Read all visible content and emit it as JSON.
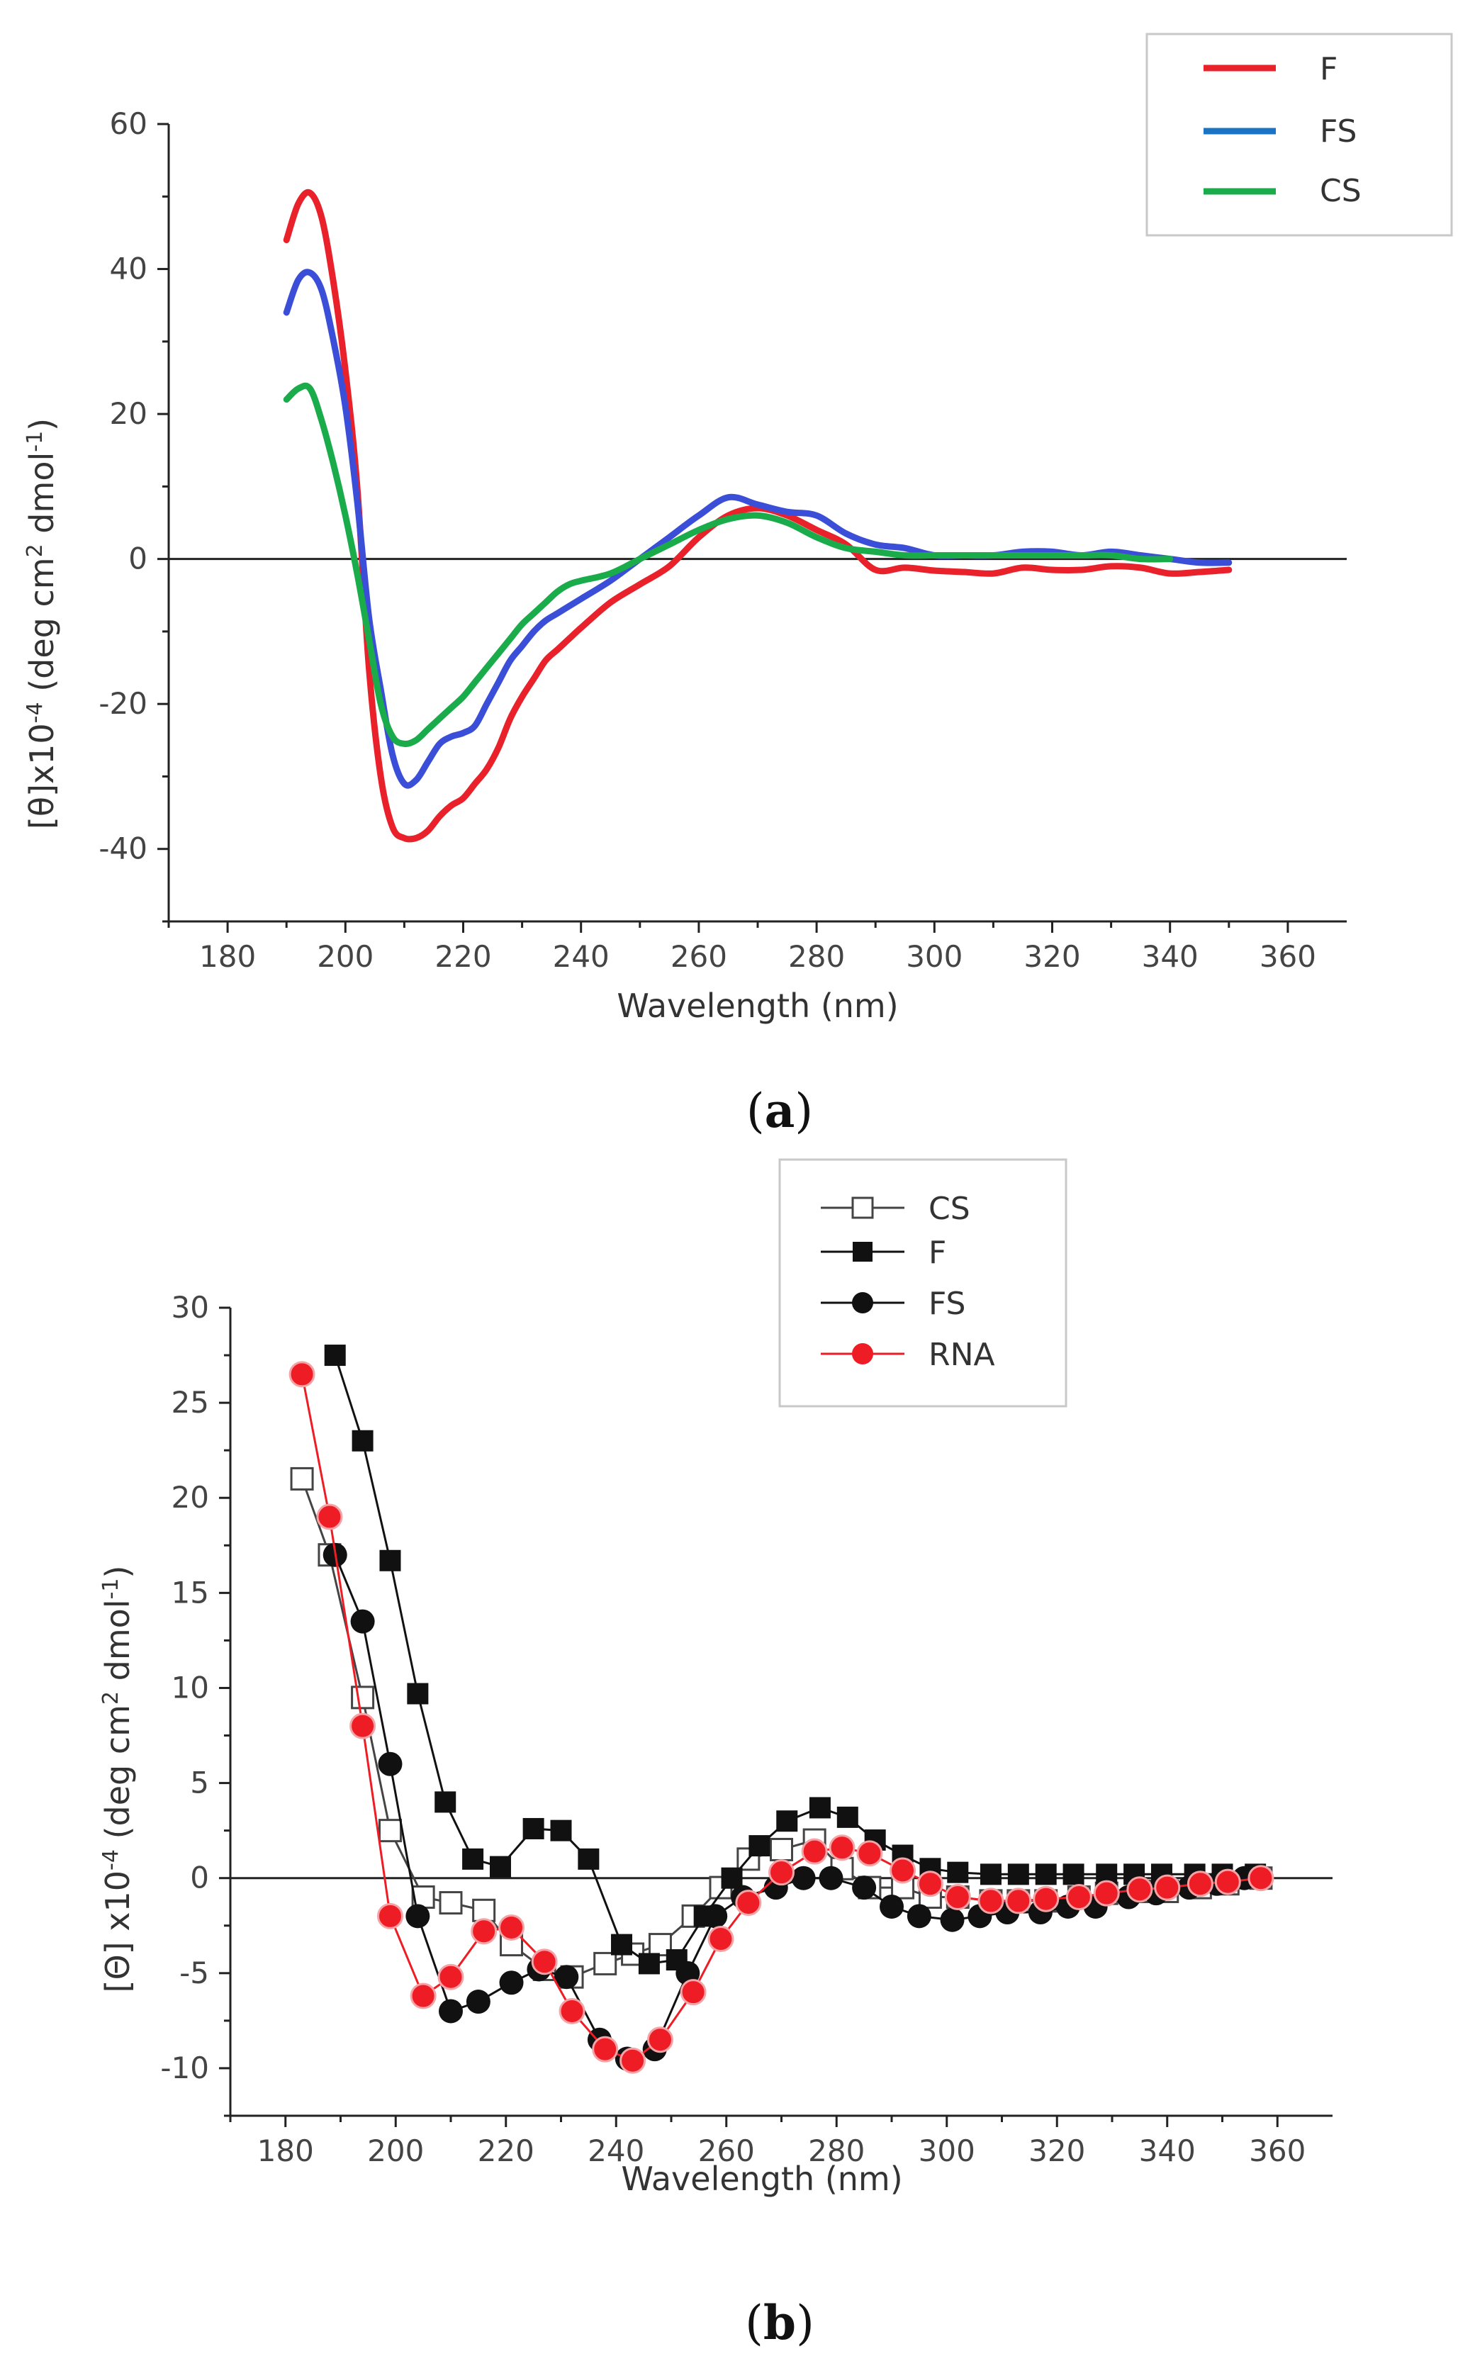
{
  "figure": {
    "caption_a_open": "(",
    "caption_a_letter": "a",
    "caption_a_close": ")",
    "caption_b_open": "(",
    "caption_b_letter": "b",
    "caption_b_close": ")"
  },
  "chart_data": [
    {
      "id": "a",
      "type": "line",
      "title": "",
      "xlabel": "Wavelength (nm)",
      "ylabel_parts": [
        "[θ]x10",
        "-4",
        " (deg cm",
        "2",
        " dmol",
        "-1",
        ")"
      ],
      "xlim": [
        170,
        370
      ],
      "ylim": [
        -50,
        60
      ],
      "xticks": [
        180,
        200,
        220,
        240,
        260,
        280,
        300,
        320,
        340,
        360
      ],
      "yticks": [
        -40,
        -20,
        0,
        20,
        40,
        60
      ],
      "zero_line": true,
      "legend_position": "top-right",
      "series": [
        {
          "name": "F",
          "color": "#e8212a",
          "marker": "none",
          "x": [
            190,
            192,
            194,
            196,
            198,
            200,
            202,
            204,
            206,
            208,
            210,
            212,
            214,
            216,
            218,
            220,
            222,
            224,
            226,
            228,
            230,
            232,
            234,
            236,
            238,
            240,
            245,
            250,
            255,
            260,
            265,
            270,
            275,
            280,
            285,
            290,
            295,
            300,
            305,
            310,
            315,
            320,
            325,
            330,
            335,
            340,
            345,
            350
          ],
          "y": [
            44,
            49,
            50.5,
            47,
            38,
            26,
            10,
            -15,
            -30,
            -37,
            -38.5,
            -38.5,
            -37.5,
            -35.5,
            -34,
            -33,
            -31,
            -29,
            -26,
            -22,
            -19,
            -16.5,
            -14,
            -12.5,
            -11,
            -9.5,
            -6,
            -3.5,
            -1,
            3,
            6,
            7,
            6,
            4,
            2,
            -1.5,
            -1.2,
            -1.6,
            -1.8,
            -2,
            -1.2,
            -1.5,
            -1.5,
            -1,
            -1.2,
            -2,
            -1.8,
            -1.5
          ]
        },
        {
          "name": "FS",
          "color": "#3a4ed8",
          "marker": "none",
          "x": [
            190,
            192,
            194,
            196,
            198,
            200,
            202,
            204,
            206,
            208,
            210,
            212,
            214,
            216,
            218,
            220,
            222,
            224,
            226,
            228,
            230,
            232,
            234,
            236,
            238,
            240,
            245,
            250,
            255,
            260,
            265,
            270,
            275,
            280,
            285,
            290,
            295,
            300,
            305,
            310,
            315,
            320,
            325,
            330,
            335,
            340,
            345,
            350
          ],
          "y": [
            34,
            38.5,
            39.5,
            37,
            30,
            21,
            8,
            -8,
            -18,
            -27,
            -31,
            -30.5,
            -28,
            -25.5,
            -24.5,
            -24,
            -23,
            -20,
            -17,
            -14,
            -12,
            -10,
            -8.5,
            -7.5,
            -6.5,
            -5.5,
            -3,
            0,
            3,
            6,
            8.5,
            7.5,
            6.5,
            6,
            3.5,
            2,
            1.5,
            0.5,
            0.5,
            0.5,
            1,
            1,
            0.5,
            1,
            0.5,
            0,
            -0.5,
            -0.5
          ]
        },
        {
          "name": "CS",
          "color": "#1aab4b",
          "marker": "none",
          "x": [
            190,
            192,
            194,
            196,
            198,
            200,
            202,
            204,
            206,
            208,
            210,
            212,
            214,
            216,
            218,
            220,
            222,
            224,
            226,
            228,
            230,
            232,
            234,
            236,
            238,
            240,
            245,
            250,
            255,
            260,
            265,
            270,
            275,
            280,
            285,
            290,
            295,
            300,
            305,
            310,
            315,
            320,
            325,
            330,
            335,
            340
          ],
          "y": [
            22,
            23.5,
            23.5,
            19,
            13,
            6,
            -2,
            -11,
            -20,
            -24.5,
            -25.5,
            -25,
            -23.5,
            -22,
            -20.5,
            -19,
            -17,
            -15,
            -13,
            -11,
            -9,
            -7.5,
            -6,
            -4.5,
            -3.5,
            -3,
            -2,
            0,
            2,
            4,
            5.5,
            6,
            5,
            3,
            1.5,
            1,
            0.5,
            0.5,
            0.5,
            0.5,
            0.5,
            0.5,
            0.5,
            0.5,
            0,
            0
          ]
        }
      ]
    },
    {
      "id": "b",
      "type": "line",
      "title": "",
      "xlabel": "Wavelength (nm)",
      "ylabel_parts": [
        "[Θ] x10",
        "-4",
        " (deg cm",
        "2",
        " dmol",
        "-1",
        ")"
      ],
      "xlim": [
        170,
        370
      ],
      "ylim": [
        -12.5,
        30
      ],
      "xticks": [
        180,
        200,
        220,
        240,
        260,
        280,
        300,
        320,
        340,
        360
      ],
      "yticks": [
        -10,
        -5,
        0,
        5,
        10,
        15,
        20,
        25,
        30
      ],
      "zero_line": true,
      "legend_position": "top-center",
      "series": [
        {
          "name": "CS",
          "color": "#444444",
          "marker": "open-square",
          "x": [
            183,
            188,
            194,
            199,
            205,
            210,
            216,
            221,
            227,
            232,
            238,
            243,
            248,
            254,
            259,
            264,
            270,
            276,
            281,
            286,
            292,
            297,
            302,
            308,
            313,
            318,
            324,
            329,
            335,
            340,
            346,
            351,
            357
          ],
          "y": [
            21,
            17,
            9.5,
            2.5,
            -1,
            -1.3,
            -1.7,
            -3.5,
            -4.8,
            -5.2,
            -4.5,
            -4,
            -3.5,
            -2,
            -0.5,
            1,
            1.5,
            2,
            0.5,
            -0.5,
            -0.5,
            -1,
            -1,
            -1.2,
            -1.2,
            -1.2,
            -1,
            -0.8,
            -0.7,
            -0.7,
            -0.5,
            -0.3,
            0
          ]
        },
        {
          "name": "F",
          "color": "#111111",
          "marker": "filled-square",
          "x": [
            189,
            194,
            199,
            204,
            209,
            214,
            219,
            225,
            230,
            235,
            241,
            246,
            251,
            256,
            261,
            266,
            271,
            277,
            282,
            287,
            292,
            297,
            302,
            308,
            313,
            318,
            323,
            329,
            334,
            339,
            345,
            350,
            356
          ],
          "y": [
            27.5,
            23,
            16.7,
            9.7,
            4,
            1,
            0.6,
            2.6,
            2.5,
            1,
            -3.5,
            -4.5,
            -4.3,
            -2,
            0,
            1.7,
            3,
            3.7,
            3.2,
            2,
            1.2,
            0.5,
            0.3,
            0.2,
            0.2,
            0.2,
            0.2,
            0.2,
            0.2,
            0.2,
            0.2,
            0.2,
            0.2
          ]
        },
        {
          "name": "FS",
          "color": "#111111",
          "marker": "filled-circle",
          "x": [
            189,
            194,
            199,
            204,
            210,
            215,
            221,
            226,
            231,
            237,
            242,
            247,
            253,
            258,
            263,
            269,
            274,
            279,
            285,
            290,
            295,
            301,
            306,
            311,
            317,
            322,
            327,
            333,
            338,
            344,
            349,
            354
          ],
          "y": [
            17,
            13.5,
            6,
            -2,
            -7,
            -6.5,
            -5.5,
            -4.8,
            -5.2,
            -8.5,
            -9.5,
            -9,
            -5,
            -2,
            -1,
            -0.5,
            0,
            0,
            -0.5,
            -1.5,
            -2,
            -2.2,
            -2,
            -1.8,
            -1.8,
            -1.5,
            -1.5,
            -1,
            -0.8,
            -0.5,
            -0.3,
            0
          ]
        },
        {
          "name": "RNA",
          "color": "#ee1c24",
          "marker": "red-circle",
          "x": [
            183,
            188,
            194,
            199,
            205,
            210,
            216,
            221,
            227,
            232,
            238,
            243,
            248,
            254,
            259,
            264,
            270,
            276,
            281,
            286,
            292,
            297,
            302,
            308,
            313,
            318,
            324,
            329,
            335,
            340,
            346,
            351,
            357
          ],
          "y": [
            26.5,
            19,
            8,
            -2,
            -6.2,
            -5.2,
            -2.8,
            -2.6,
            -4.4,
            -7,
            -9,
            -9.6,
            -8.5,
            -6,
            -3.2,
            -1.3,
            0.3,
            1.4,
            1.6,
            1.3,
            0.4,
            -0.3,
            -1,
            -1.2,
            -1.2,
            -1.1,
            -1,
            -0.8,
            -0.6,
            -0.5,
            -0.3,
            -0.2,
            0
          ]
        }
      ]
    }
  ]
}
